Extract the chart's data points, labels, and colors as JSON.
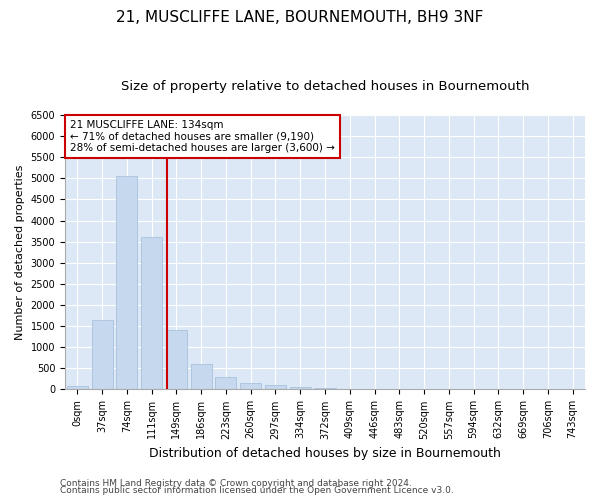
{
  "title": "21, MUSCLIFFE LANE, BOURNEMOUTH, BH9 3NF",
  "subtitle": "Size of property relative to detached houses in Bournemouth",
  "xlabel": "Distribution of detached houses by size in Bournemouth",
  "ylabel": "Number of detached properties",
  "footer1": "Contains HM Land Registry data © Crown copyright and database right 2024.",
  "footer2": "Contains public sector information licensed under the Open Government Licence v3.0.",
  "bar_labels": [
    "0sqm",
    "37sqm",
    "74sqm",
    "111sqm",
    "149sqm",
    "186sqm",
    "223sqm",
    "260sqm",
    "297sqm",
    "334sqm",
    "372sqm",
    "409sqm",
    "446sqm",
    "483sqm",
    "520sqm",
    "557sqm",
    "594sqm",
    "632sqm",
    "669sqm",
    "706sqm",
    "743sqm"
  ],
  "bar_values": [
    75,
    1650,
    5050,
    3600,
    1400,
    600,
    300,
    150,
    100,
    50,
    30,
    20,
    15,
    5,
    3,
    2,
    1,
    1,
    1,
    1,
    1
  ],
  "bar_color": "#c5d8ed",
  "bar_edge_color": "#a0bcd8",
  "background_color": "#dce8f5",
  "grid_color": "#ffffff",
  "vline_color": "#cc0000",
  "annotation_text": "21 MUSCLIFFE LANE: 134sqm\n← 71% of detached houses are smaller (9,190)\n28% of semi-detached houses are larger (3,600) →",
  "annotation_box_color": "#cc0000",
  "ylim": [
    0,
    6500
  ],
  "yticks": [
    0,
    500,
    1000,
    1500,
    2000,
    2500,
    3000,
    3500,
    4000,
    4500,
    5000,
    5500,
    6000,
    6500
  ],
  "title_fontsize": 11,
  "subtitle_fontsize": 9.5,
  "xlabel_fontsize": 9,
  "ylabel_fontsize": 8,
  "tick_fontsize": 7,
  "annotation_fontsize": 7.5,
  "footer_fontsize": 6.5
}
